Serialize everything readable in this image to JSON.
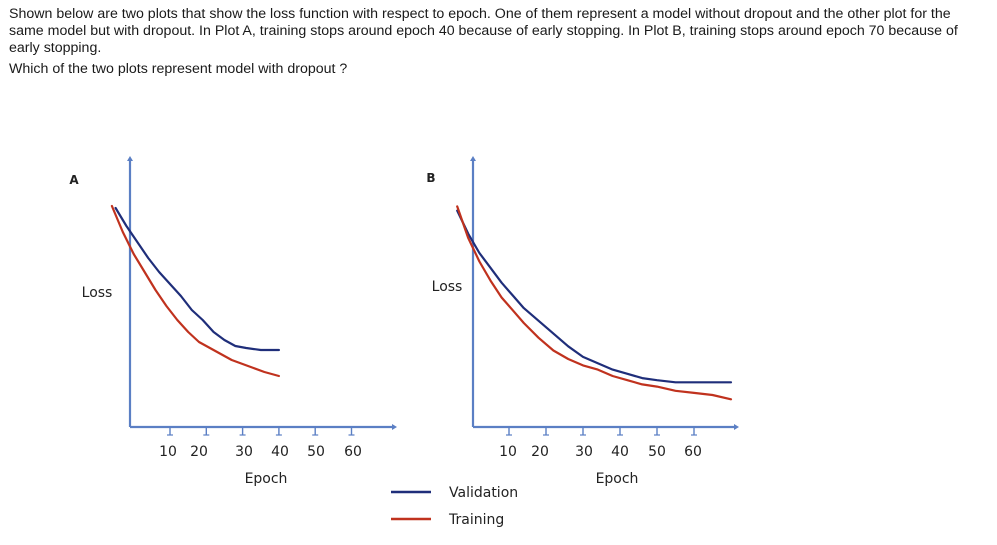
{
  "question": {
    "paragraph": "Shown below are two plots that show the loss function with respect to epoch. One of them represent a model without dropout and the other plot for the same model but with dropout. In Plot A, training stops around epoch 40 because of early stopping. In Plot B, training stops around epoch 70 because of early stopping.",
    "ask": "Which of the two plots represent model with dropout ?"
  },
  "colors": {
    "validation": "#1f2e7a",
    "training": "#c0321e",
    "axis": "#5b7fc4"
  },
  "legend": [
    {
      "name": "Validation",
      "color": "#1f2e7a"
    },
    {
      "name": "Training",
      "color": "#c0321e"
    }
  ],
  "chart_data": [
    {
      "type": "line",
      "title": "A",
      "ylabel": "Loss",
      "xlabel": "Epoch",
      "xticks": [
        10,
        20,
        30,
        40,
        50,
        60
      ],
      "xlim": [
        0,
        70
      ],
      "ylim": [
        0,
        1
      ],
      "series": [
        {
          "name": "Validation",
          "x": [
            -5,
            -2,
            1,
            4,
            7,
            10,
            13,
            16,
            19,
            22,
            25,
            28,
            31,
            35,
            40
          ],
          "y": [
            0.96,
            0.87,
            0.79,
            0.71,
            0.64,
            0.58,
            0.52,
            0.45,
            0.4,
            0.34,
            0.3,
            0.27,
            0.26,
            0.25,
            0.25
          ]
        },
        {
          "name": "Training",
          "x": [
            -6,
            -3,
            0,
            3,
            6,
            9,
            12,
            15,
            18,
            21,
            24,
            27,
            30,
            33,
            36,
            40
          ],
          "y": [
            0.97,
            0.84,
            0.73,
            0.64,
            0.55,
            0.47,
            0.4,
            0.34,
            0.29,
            0.26,
            0.23,
            0.2,
            0.18,
            0.16,
            0.14,
            0.12
          ]
        }
      ]
    },
    {
      "type": "line",
      "title": "B",
      "ylabel": "Loss",
      "xlabel": "Epoch",
      "xticks": [
        10,
        20,
        30,
        40,
        50,
        60
      ],
      "xlim": [
        0,
        70
      ],
      "ylim": [
        0,
        1
      ],
      "series": [
        {
          "name": "Validation",
          "x": [
            -4,
            -1,
            2,
            5,
            8,
            11,
            14,
            18,
            22,
            26,
            30,
            34,
            38,
            42,
            46,
            50,
            55,
            60,
            65,
            70
          ],
          "y": [
            0.95,
            0.84,
            0.75,
            0.68,
            0.61,
            0.55,
            0.49,
            0.43,
            0.37,
            0.31,
            0.26,
            0.23,
            0.2,
            0.18,
            0.16,
            0.15,
            0.14,
            0.14,
            0.14,
            0.14
          ]
        },
        {
          "name": "Training",
          "x": [
            -4,
            -1,
            2,
            5,
            8,
            11,
            14,
            18,
            22,
            26,
            30,
            34,
            38,
            42,
            46,
            50,
            55,
            60,
            65,
            70
          ],
          "y": [
            0.97,
            0.82,
            0.71,
            0.62,
            0.54,
            0.48,
            0.42,
            0.35,
            0.29,
            0.25,
            0.22,
            0.2,
            0.17,
            0.15,
            0.13,
            0.12,
            0.1,
            0.09,
            0.08,
            0.06
          ]
        }
      ]
    }
  ]
}
